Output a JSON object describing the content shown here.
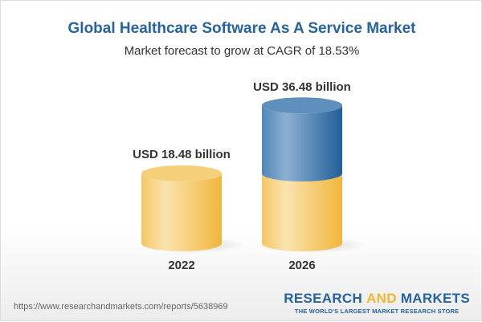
{
  "chart_data": {
    "type": "bar",
    "style": "3d-cylinder",
    "title": "Global Healthcare Software As A Service Market",
    "subtitle": "Market forecast to grow at CAGR of 18.53%",
    "categories": [
      "2022",
      "2026"
    ],
    "values": [
      18.48,
      36.48
    ],
    "data_labels": [
      "USD 18.48 billion",
      "USD 36.48 billion"
    ],
    "unit": "USD billion",
    "colors": {
      "base": "#f2c05a",
      "growth": "#2f6fa8"
    }
  },
  "footer": {
    "url": "https://www.researchandmarkets.com/reports/5638969",
    "logo_part1": "RESEARCH ",
    "logo_part2": "AND",
    "logo_part3": " MARKETS",
    "tagline": "THE WORLD'S LARGEST MARKET RESEARCH STORE"
  }
}
